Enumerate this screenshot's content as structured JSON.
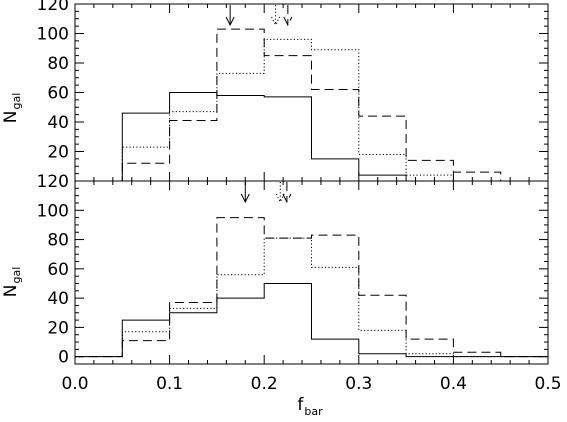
{
  "chart_data": [
    {
      "type": "step-histogram",
      "panel": "top",
      "bin_edges": [
        0.0,
        0.05,
        0.1,
        0.15,
        0.2,
        0.25,
        0.3,
        0.35,
        0.4,
        0.45,
        0.5
      ],
      "xlim": [
        0.0,
        0.5
      ],
      "ylim": [
        0,
        120
      ],
      "yticks": [
        "20",
        "40",
        "60",
        "80",
        "100",
        "120"
      ],
      "ylabel": {
        "main": "N",
        "sub": "gal"
      },
      "series": [
        {
          "style": "solid",
          "values": [
            0,
            46,
            60,
            58,
            57,
            15,
            4,
            0,
            0,
            0
          ]
        },
        {
          "style": "dotted",
          "values": [
            0,
            23,
            47,
            73,
            96,
            89,
            18,
            4,
            0,
            0
          ]
        },
        {
          "style": "dashed",
          "values": [
            0,
            12,
            41,
            103,
            85,
            62,
            44,
            14,
            6,
            0
          ]
        }
      ],
      "arrows": [
        {
          "style": "solid",
          "x": 0.164
        },
        {
          "style": "dotted",
          "x": 0.212
        },
        {
          "style": "dashed",
          "x": 0.225
        }
      ]
    },
    {
      "type": "step-histogram",
      "panel": "bottom",
      "bin_edges": [
        0.0,
        0.05,
        0.1,
        0.15,
        0.2,
        0.25,
        0.3,
        0.35,
        0.4,
        0.45,
        0.5
      ],
      "xlim": [
        0.0,
        0.5
      ],
      "ylim": [
        -5,
        120
      ],
      "xticks": [
        "0.0",
        "0.1",
        "0.2",
        "0.3",
        "0.4",
        "0.5"
      ],
      "yticks": [
        "0",
        "20",
        "40",
        "60",
        "80",
        "100",
        "120"
      ],
      "ylabel": {
        "main": "N",
        "sub": "gal"
      },
      "xlabel": {
        "main": "f",
        "sub": "bar"
      },
      "series": [
        {
          "style": "solid",
          "values": [
            0,
            25,
            30,
            40,
            50,
            12,
            2,
            0,
            0,
            0
          ]
        },
        {
          "style": "dotted",
          "values": [
            0,
            17,
            33,
            56,
            81,
            61,
            18,
            2,
            0,
            0
          ]
        },
        {
          "style": "dashed",
          "values": [
            0,
            11,
            37,
            95,
            81,
            83,
            42,
            12,
            3,
            0
          ]
        }
      ],
      "arrows": [
        {
          "style": "solid",
          "x": 0.18
        },
        {
          "style": "dotted",
          "x": 0.217
        },
        {
          "style": "dashed",
          "x": 0.224
        }
      ]
    }
  ]
}
